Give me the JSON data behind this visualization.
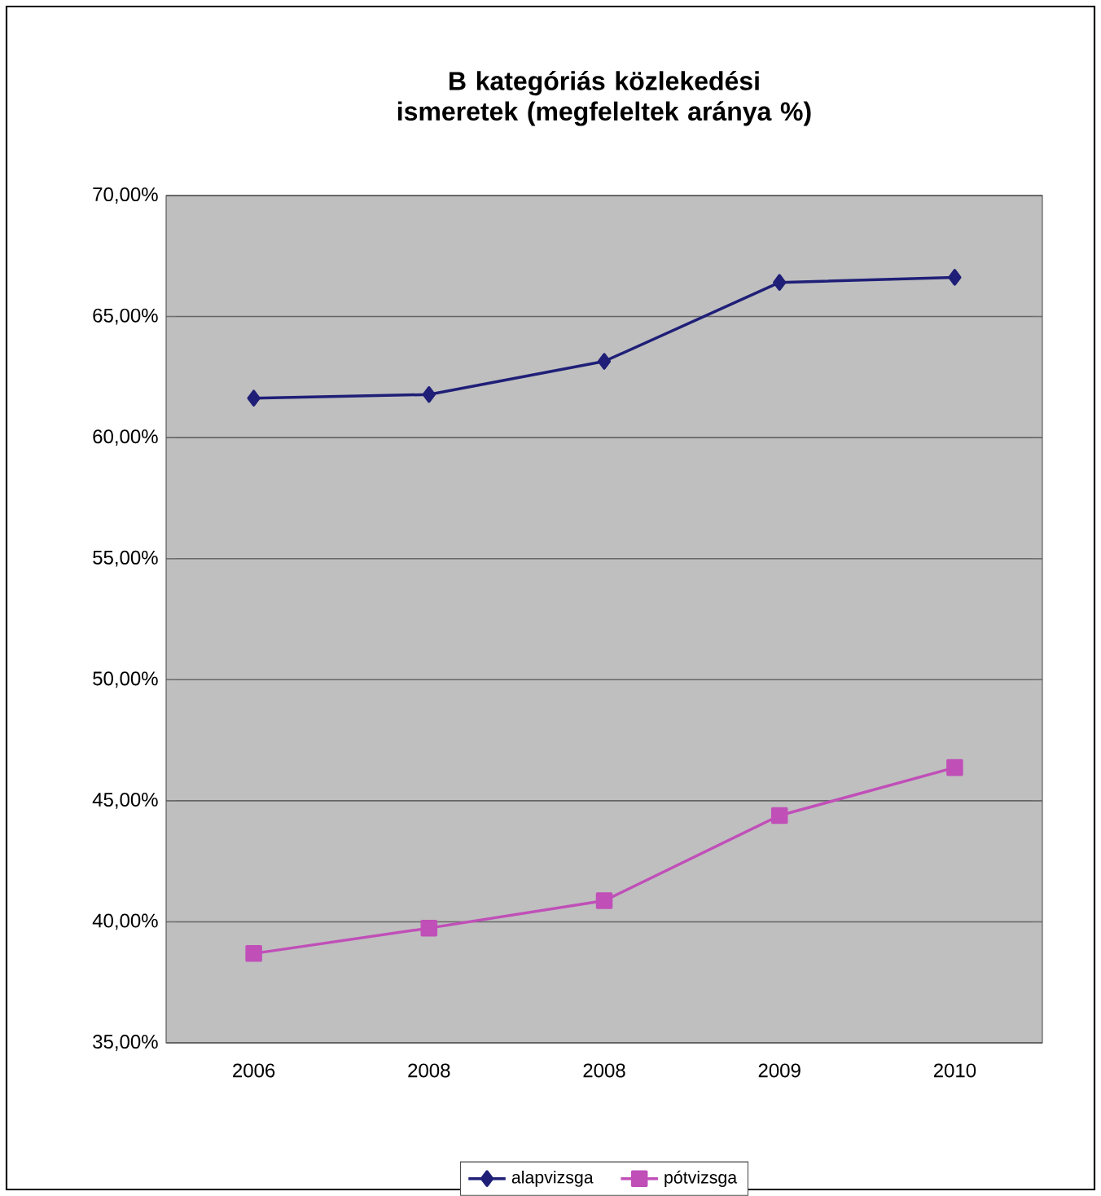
{
  "chart_data": {
    "type": "line",
    "title": "B kategóriás közlekedési ismeretek (megfeleltek aránya %)",
    "categories": [
      "2006",
      "2008",
      "2008",
      "2009",
      "2010"
    ],
    "series": [
      {
        "name": "alapvizsga",
        "color": "#1f1f78",
        "marker": "diamond",
        "values": [
          61.63,
          61.78,
          63.15,
          66.41,
          66.62
        ]
      },
      {
        "name": "pótvizsga",
        "color": "#c04fb8",
        "marker": "square",
        "values": [
          38.69,
          39.74,
          40.87,
          44.39,
          46.37
        ]
      }
    ],
    "ylim": [
      35,
      70
    ],
    "yticks": [
      {
        "value": 35,
        "label": "35,00%"
      },
      {
        "value": 40,
        "label": "40,00%"
      },
      {
        "value": 45,
        "label": "45,00%"
      },
      {
        "value": 50,
        "label": "50,00%"
      },
      {
        "value": 55,
        "label": "55,00%"
      },
      {
        "value": 60,
        "label": "60,00%"
      },
      {
        "value": 65,
        "label": "65,00%"
      },
      {
        "value": 70,
        "label": "70,00%"
      }
    ],
    "grid": "y",
    "legend": "bottom"
  }
}
